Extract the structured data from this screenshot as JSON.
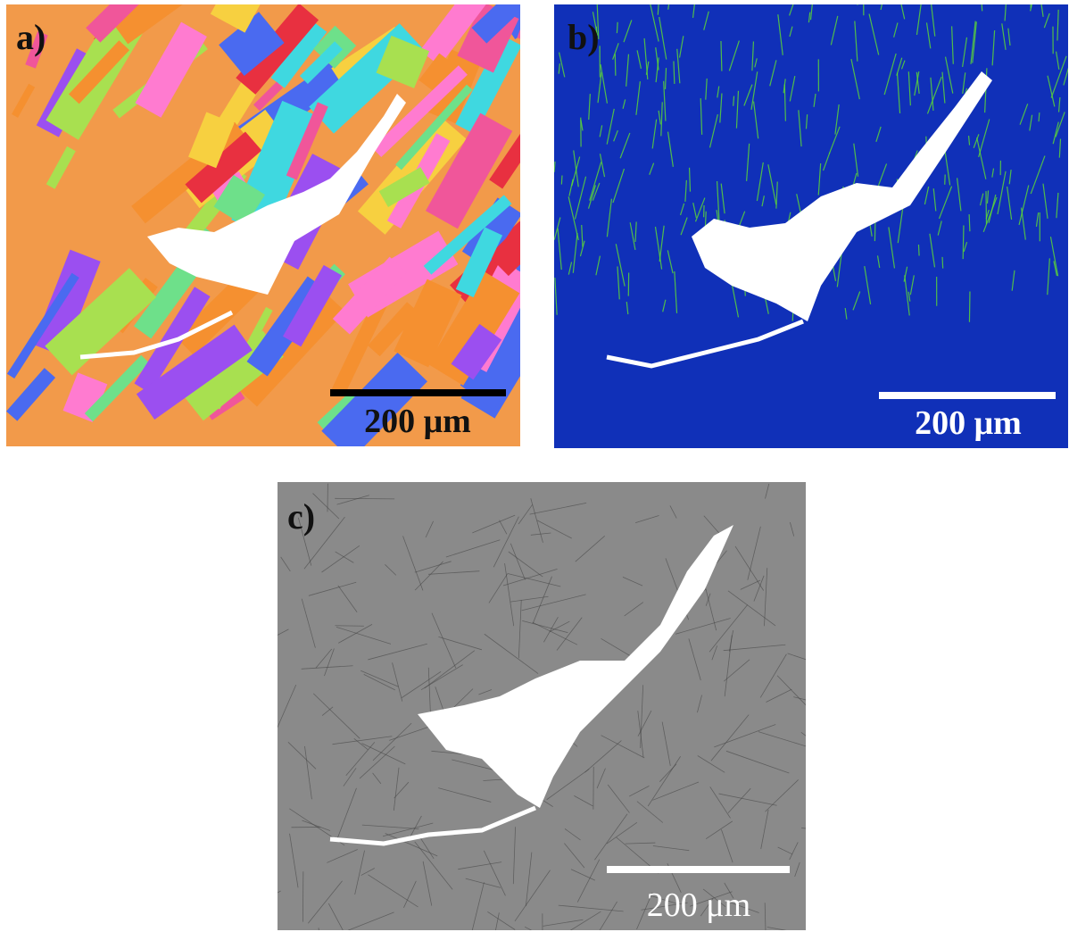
{
  "panels": [
    {
      "label": "a)",
      "scale_bar": "200 μm"
    },
    {
      "label": "b)",
      "scale_bar": "200 μm"
    },
    {
      "label": "c)",
      "scale_bar": "200 μm"
    }
  ]
}
